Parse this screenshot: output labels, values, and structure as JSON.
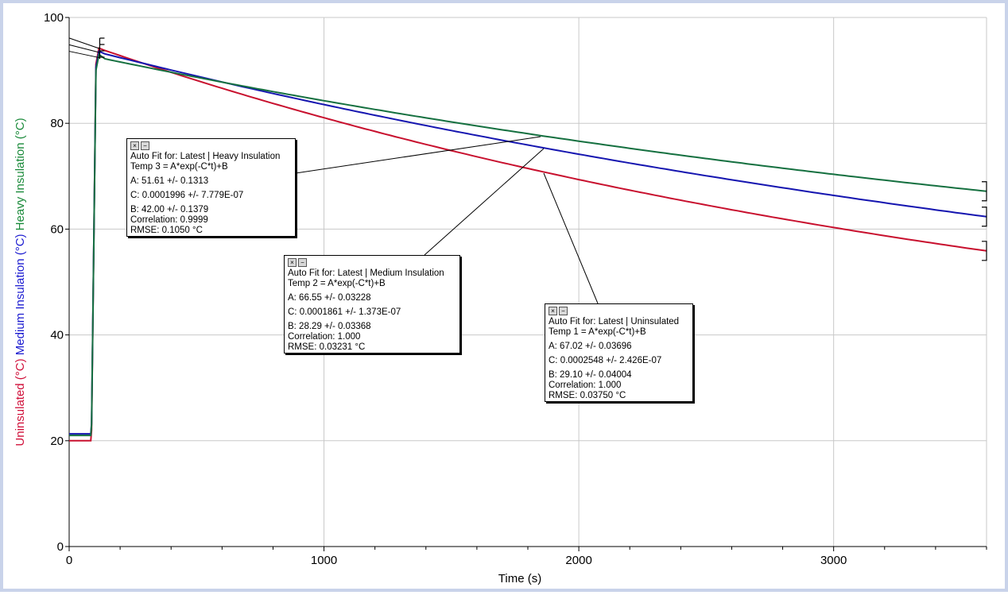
{
  "chart_data": {
    "type": "line",
    "xlabel": "Time (s)",
    "ylabels": [
      {
        "text": "Uninsulated (°C)",
        "color": "#d0103a"
      },
      {
        "text": "Medium Insulation (°C)",
        "color": "#1a1ad0"
      },
      {
        "text": "Heavy Insulation (°C)",
        "color": "#1a8a3a"
      }
    ],
    "xlim": [
      0,
      3600
    ],
    "ylim": [
      0,
      100
    ],
    "x_ticks": [
      "0",
      "1000",
      "2000",
      "3000"
    ],
    "y_ticks": [
      "0",
      "20",
      "40",
      "60",
      "80",
      "100"
    ],
    "grid": true,
    "series": [
      {
        "name": "Uninsulated",
        "color": "#c8102e",
        "baseline": 20,
        "peak": 94.2,
        "A": 67.02,
        "C": 0.0002548,
        "B": 29.1
      },
      {
        "name": "Medium Insulation",
        "color": "#1515b0",
        "baseline": 21.3,
        "peak": 93.6,
        "A": 66.55,
        "C": 0.0001861,
        "B": 28.29
      },
      {
        "name": "Heavy Insulation",
        "color": "#157040",
        "baseline": 21.0,
        "peak": 93.0,
        "A": 51.61,
        "C": 0.0001996,
        "B": 42.0
      }
    ]
  },
  "fits": {
    "heavy": {
      "title": "Auto Fit for: Latest | Heavy Insulation",
      "eq": "Temp 3 = A*exp(-C*t)+B",
      "a": "A: 51.61 +/- 0.1313",
      "c": "C: 0.0001996 +/- 7.779E-07",
      "b": "B: 42.00 +/- 0.1379",
      "corr": "Correlation: 0.9999",
      "rmse": "RMSE: 0.1050 °C"
    },
    "medium": {
      "title": "Auto Fit for: Latest | Medium Insulation",
      "eq": "Temp 2 = A*exp(-C*t)+B",
      "a": "A: 66.55 +/- 0.03228",
      "c": "C: 0.0001861 +/- 1.373E-07",
      "b": "B: 28.29 +/- 0.03368",
      "corr": "Correlation: 1.000",
      "rmse": "RMSE: 0.03231 °C"
    },
    "uninsulated": {
      "title": "Auto Fit for: Latest | Uninsulated",
      "eq": "Temp 1 = A*exp(-C*t)+B",
      "a": "A: 67.02 +/- 0.03696",
      "c": "C: 0.0002548 +/- 2.426E-07",
      "b": "B: 29.10 +/- 0.04004",
      "corr": "Correlation: 1.000",
      "rmse": "RMSE: 0.03750 °C"
    }
  },
  "controls": {
    "close": "×",
    "minimize": "−"
  }
}
